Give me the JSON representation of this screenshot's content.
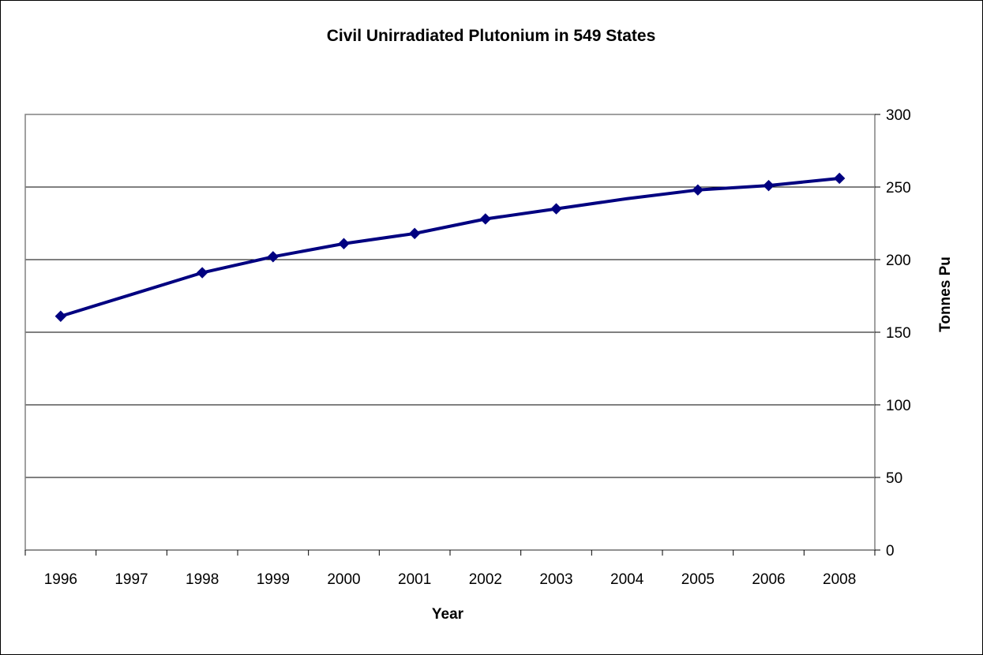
{
  "chart_data": {
    "type": "line",
    "title": "Civil Unirradiated Plutonium in 549 States",
    "xlabel": "Year",
    "ylabel": "Tonnes Pu",
    "categories": [
      "1996",
      "1997",
      "1998",
      "1999",
      "2000",
      "2001",
      "2002",
      "2003",
      "2004",
      "2005",
      "2006",
      "2008"
    ],
    "series": [
      {
        "values": [
          161,
          176,
          191,
          202,
          211,
          218,
          228,
          235,
          242,
          248,
          251,
          256
        ],
        "markers": [
          true,
          false,
          true,
          true,
          true,
          true,
          true,
          true,
          false,
          true,
          true,
          true
        ],
        "color": "#000080"
      }
    ],
    "ylim": [
      0,
      300
    ],
    "yticks": [
      0,
      50,
      100,
      150,
      200,
      250,
      300
    ],
    "y_axis_side": "right",
    "grid": "horizontal",
    "legend": "none"
  }
}
